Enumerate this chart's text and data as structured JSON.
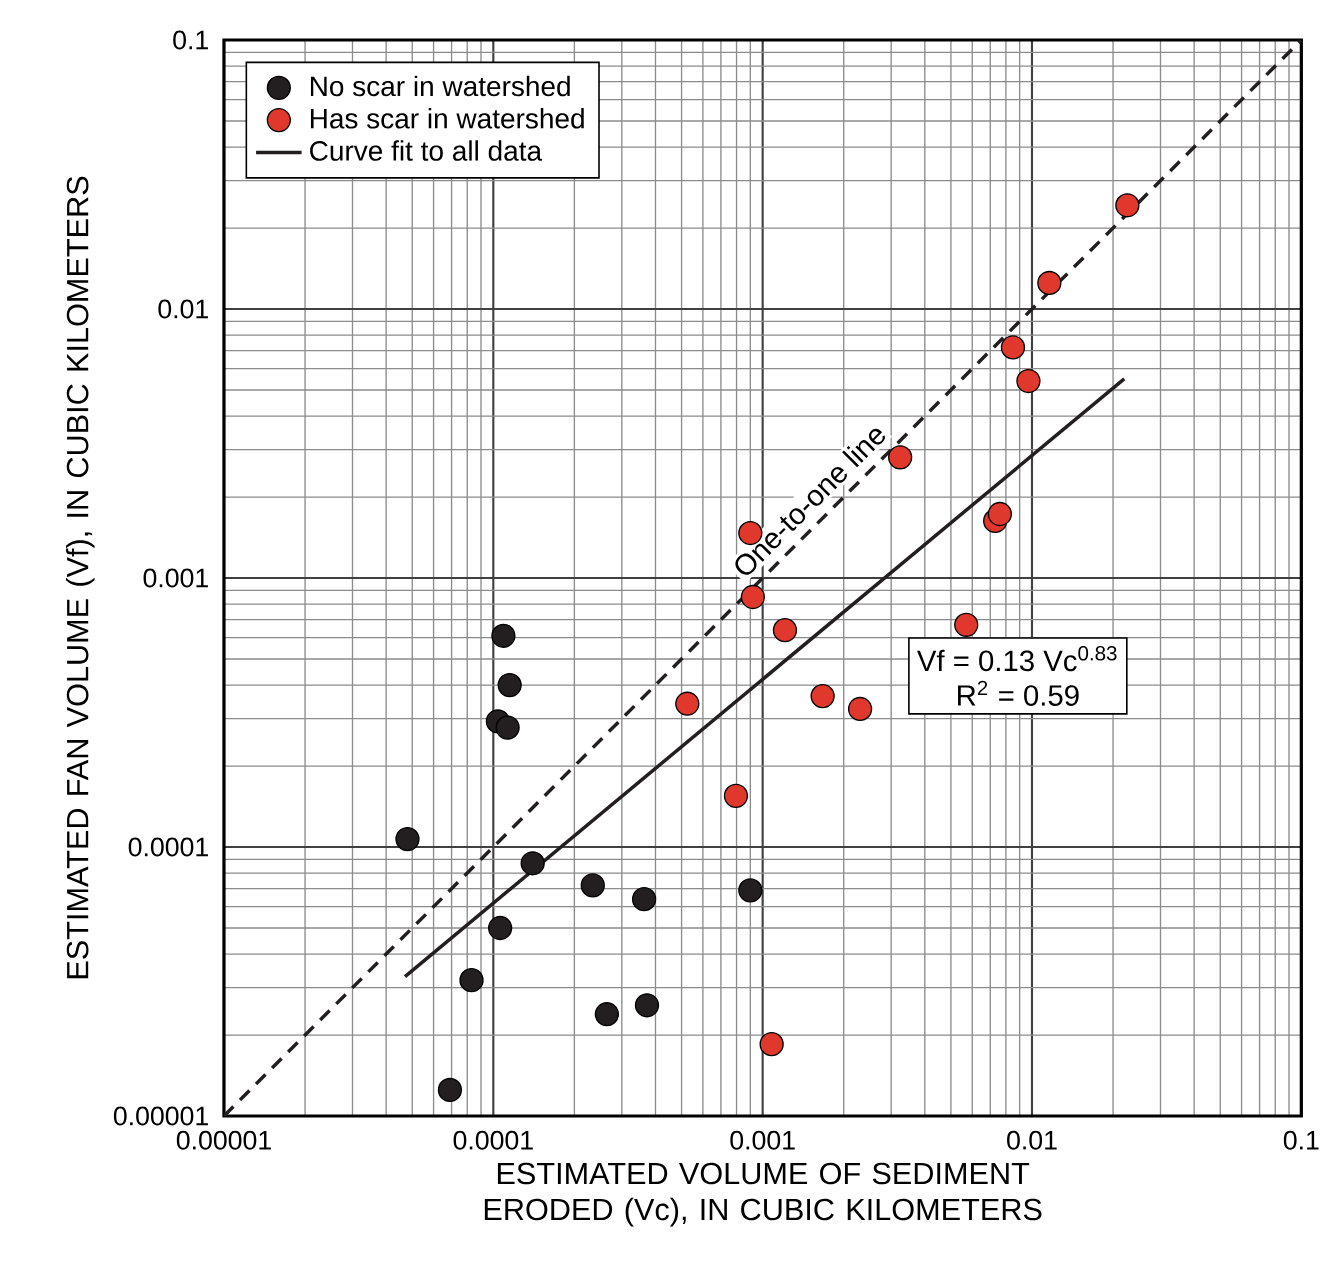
{
  "chart_data": {
    "type": "scatter",
    "xlabel": "ESTIMATED VOLUME OF SEDIMENT ERODED (Vc), IN CUBIC KILOMETERS",
    "ylabel": "ESTIMATED FAN VOLUME (Vf), IN CUBIC KILOMETERS",
    "log": "xy",
    "grid": true,
    "legend": "top left",
    "marker": "circle",
    "xlim": [
      1e-05,
      0.1
    ],
    "ylim": [
      1e-05,
      0.1
    ],
    "xticks": [
      {
        "value": 1e-05,
        "label": "0.00001"
      },
      {
        "value": 0.0001,
        "label": "0.0001"
      },
      {
        "value": 0.001,
        "label": "0.001"
      },
      {
        "value": 0.01,
        "label": "0.01"
      },
      {
        "value": 0.1,
        "label": "0.1"
      }
    ],
    "yticks": [
      {
        "value": 1e-05,
        "label": "0.00001"
      },
      {
        "value": 0.0001,
        "label": "0.0001"
      },
      {
        "value": 0.001,
        "label": "0.001"
      },
      {
        "value": 0.01,
        "label": "0.01"
      },
      {
        "value": 0.1,
        "label": "0.1"
      }
    ],
    "series": [
      {
        "name": "No scar in watershed",
        "color": "#231f20",
        "x": [
          0.000109,
          0.000115,
          0.000104,
          0.000113,
          4.8e-05,
          0.00014,
          0.000234,
          0.000363,
          0.0009,
          0.000106,
          8.3e-05,
          0.000264,
          0.000372,
          6.9e-05
        ],
        "values": [
          0.00061,
          0.0004,
          0.000293,
          0.000278,
          0.000107,
          8.7e-05,
          7.2e-05,
          6.4e-05,
          6.9e-05,
          5e-05,
          3.2e-05,
          2.39e-05,
          2.58e-05,
          1.25e-05
        ]
      },
      {
        "name": "Has scar in watershed",
        "color": "#e0382c",
        "x": [
          0.00092,
          0.00121,
          0.000525,
          0.000796,
          0.00108,
          0.0116,
          0.0085,
          0.0097,
          0.00324,
          0.0073,
          0.0076,
          0.0009,
          0.0057,
          0.00167,
          0.0023,
          0.0226
        ],
        "values": [
          0.00085,
          0.00064,
          0.000341,
          0.000155,
          1.85e-05,
          0.0125,
          0.0072,
          0.0054,
          0.00281,
          0.00163,
          0.00173,
          0.00147,
          0.00067,
          0.000364,
          0.000326,
          0.0243
        ]
      },
      {
        "name": "Curve fit to all data",
        "type": "line",
        "color": "#231f20",
        "line_style": "solid",
        "marker": "none",
        "x": [
          4.7e-05,
          0.022
        ],
        "values": [
          3.3e-05,
          0.0055
        ]
      },
      {
        "type": "line",
        "color": "#231f20",
        "line_style": "dashed",
        "marker": "none",
        "x": [
          1e-05,
          0.1
        ],
        "values": [
          1e-05,
          0.1
        ]
      }
    ],
    "annotations": [
      {
        "text": "One-to-one line",
        "x": 0.0017,
        "y": 0.0017
      },
      "Vf = 0.13 Vc$^{0.83}$",
      "R$^{2}$ = 0.59"
    ]
  }
}
